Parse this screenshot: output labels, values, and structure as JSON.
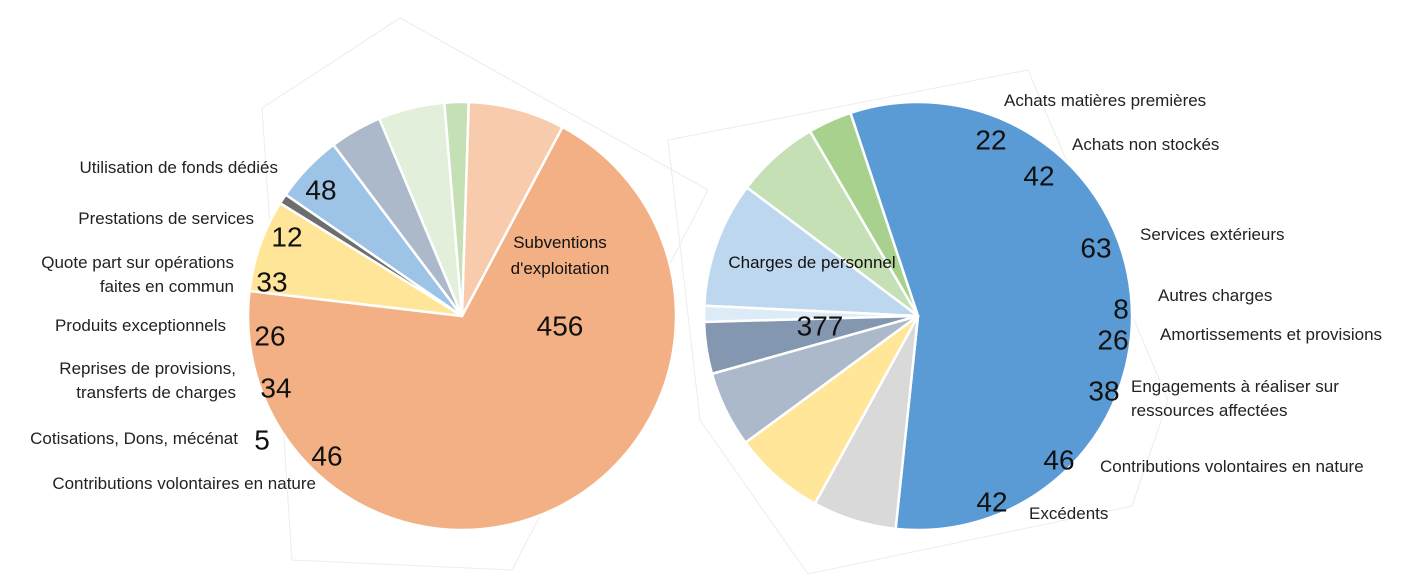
{
  "chart_data": [
    {
      "type": "pie",
      "title": "",
      "slices": [
        {
          "label": [
            "Subventions",
            "d'exploitation"
          ],
          "value": 456,
          "color": "#F2B084"
        },
        {
          "label": [
            "Contributions volontaires en nature"
          ],
          "value": 46,
          "color": "#FFE597"
        },
        {
          "label": [
            "Cotisations, Dons, mécénat"
          ],
          "value": 5,
          "color": "#6D6D6D"
        },
        {
          "label": [
            "Reprises de provisions,",
            "transferts de charges"
          ],
          "value": 34,
          "color": "#9DC3E6"
        },
        {
          "label": [
            "Produits exceptionnels"
          ],
          "value": 26,
          "color": "#ACB9CA"
        },
        {
          "label": [
            "Quote part sur opérations",
            "faites en commun"
          ],
          "value": 33,
          "color": "#E2EFDA"
        },
        {
          "label": [
            "Prestations de services"
          ],
          "value": 12,
          "color": "#C5E0B4"
        },
        {
          "label": [
            "Utilisation de fonds dédiés"
          ],
          "value": 48,
          "color": "#F8CBAD"
        }
      ]
    },
    {
      "type": "pie",
      "title": "",
      "slices": [
        {
          "label": [
            "Charges de personnel"
          ],
          "value": 377,
          "color": "#5B9BD5"
        },
        {
          "label": [
            "Achats matières premières"
          ],
          "value": 22,
          "color": "#A9D18E"
        },
        {
          "label": [
            "Achats non stockés"
          ],
          "value": 42,
          "color": "#C5E0B4"
        },
        {
          "label": [
            "Services extérieurs"
          ],
          "value": 63,
          "color": "#BDD7EE"
        },
        {
          "label": [
            "Autres charges"
          ],
          "value": 8,
          "color": "#DDEBF7"
        },
        {
          "label": [
            "Amortissements et provisions"
          ],
          "value": 26,
          "color": "#8497B0"
        },
        {
          "label": [
            "Engagements à réaliser sur",
            "ressources affectées"
          ],
          "value": 38,
          "color": "#ACB9CA"
        },
        {
          "label": [
            "Contributions volontaires en nature"
          ],
          "value": 46,
          "color": "#FFE699"
        },
        {
          "label": [
            "Excédents"
          ],
          "value": 42,
          "color": "#D9D9D9"
        }
      ]
    }
  ]
}
